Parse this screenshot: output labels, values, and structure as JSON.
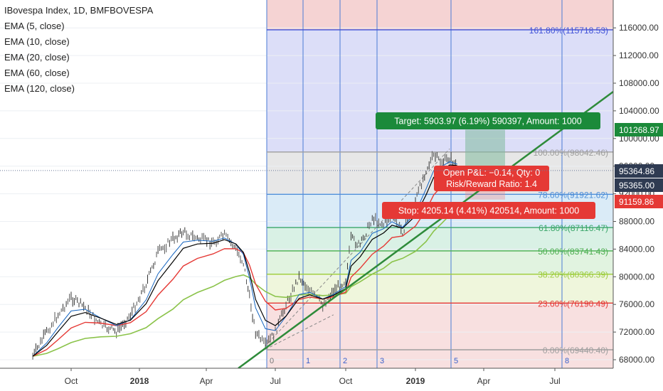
{
  "chart_data": {
    "type": "line",
    "title": "IBovespa Index, 1D, BMFBOVESPA",
    "indicators": [
      "EMA (5, close)",
      "EMA (10, close)",
      "EMA (20, close)",
      "EMA (60, close)",
      "EMA (120, close)"
    ],
    "x_ticks": [
      "Oct",
      "2018",
      "Apr",
      "Jul",
      "Oct",
      "2019",
      "Apr",
      "Jul"
    ],
    "y_ticks": [
      68000,
      72000,
      76000,
      80000,
      84000,
      88000,
      92000,
      96000,
      100000,
      104000,
      108000,
      112000,
      116000
    ],
    "y_tick_labels": [
      "68000.00",
      "72000.00",
      "76000.00",
      "80000.00",
      "84000.00",
      "88000.00",
      "92000.00",
      "96000.00",
      "100000.00",
      "104000.00",
      "108000.00",
      "112000.00",
      "116000.00"
    ],
    "ylim": [
      66500,
      119500
    ],
    "price_series": {
      "name": "IBovespa",
      "x": [
        "2017-08-15",
        "2017-09-01",
        "2017-09-15",
        "2017-10-01",
        "2017-10-20",
        "2017-11-10",
        "2017-12-01",
        "2017-12-20",
        "2018-01-10",
        "2018-01-26",
        "2018-02-15",
        "2018-03-01",
        "2018-03-20",
        "2018-04-10",
        "2018-04-25",
        "2018-05-10",
        "2018-05-20",
        "2018-05-28",
        "2018-06-05",
        "2018-06-18",
        "2018-07-01",
        "2018-07-15",
        "2018-08-01",
        "2018-08-15",
        "2018-09-01",
        "2018-09-15",
        "2018-10-01",
        "2018-10-08",
        "2018-10-20",
        "2018-11-05",
        "2018-11-20",
        "2018-12-01",
        "2018-12-15",
        "2019-01-01",
        "2019-01-15",
        "2019-01-25",
        "2019-02-05",
        "2019-02-15",
        "2019-02-25"
      ],
      "y": [
        68500,
        72000,
        74500,
        77000,
        75500,
        73000,
        72000,
        74500,
        79000,
        83500,
        85500,
        86500,
        85500,
        85000,
        86000,
        84000,
        82000,
        77000,
        72000,
        70000,
        72000,
        76000,
        80000,
        78000,
        76000,
        78000,
        79500,
        85500,
        84500,
        88500,
        87500,
        88800,
        86500,
        91000,
        95500,
        97500,
        96500,
        97200,
        96000
      ]
    },
    "ema_series": [
      {
        "name": "EMA (20, close)",
        "color": "#e53935"
      },
      {
        "name": "EMA (60, close)",
        "color": "#8bc34a"
      },
      {
        "name": "EMA (5, close)",
        "color": "#1565c0"
      },
      {
        "name": "EMA (10, close)",
        "color": "#000000"
      }
    ],
    "fib_retracement": [
      {
        "label": "161.80%(115718.53)",
        "value": 115718.53,
        "color": "#3f51d8",
        "fill": "#d6d8f7"
      },
      {
        "label": "100.00%(98042.46)",
        "value": 98042.46,
        "color": "#9e9e9e",
        "fill": "#e3e3e3"
      },
      {
        "label": "78.60%(91921.62)",
        "value": 91921.62,
        "color": "#4f8fd8",
        "fill": "#d4e8f6"
      },
      {
        "label": "61.80%(87116.47)",
        "value": 87116.47,
        "color": "#3aa66a",
        "fill": "#d2efe0"
      },
      {
        "label": "50.00%(83741.43)",
        "value": 83741.43,
        "color": "#4caf50",
        "fill": "#dcf1da"
      },
      {
        "label": "38.20%(80366.39)",
        "value": 80366.39,
        "color": "#9ccc3a",
        "fill": "#ecf4d6"
      },
      {
        "label": "23.60%(76190.49)",
        "value": 76190.49,
        "color": "#e53935",
        "fill": "#f7dada"
      },
      {
        "label": "0.00%(69440.40)",
        "value": 69440.4,
        "color": "#9e9e9e",
        "fill": "#f7dada"
      }
    ],
    "fib_time_zones": [
      "0",
      "1",
      "2",
      "3",
      "5",
      "8"
    ],
    "position": {
      "target_label": "Target: 5903.97 (6.19%) 590397, Amount: 1000",
      "stop_label": "Stop: 4205.14 (4.41%) 420514, Amount: 1000",
      "pnl_label": "Open P&L: −0.14, Qty: 0",
      "rr_label": "Risk/Reward Ratio: 1.4"
    },
    "price_tags": [
      {
        "label": "101268.97",
        "value": 101268.97,
        "color": "#1b8a3a"
      },
      {
        "label": "95364.86",
        "value": 95364.86,
        "color": "#2f3b52"
      },
      {
        "label": "95365.00",
        "value": 95365.0,
        "color": "#2f3b52"
      },
      {
        "label": "91159.86",
        "value": 91159.86,
        "color": "#e53935"
      }
    ]
  }
}
